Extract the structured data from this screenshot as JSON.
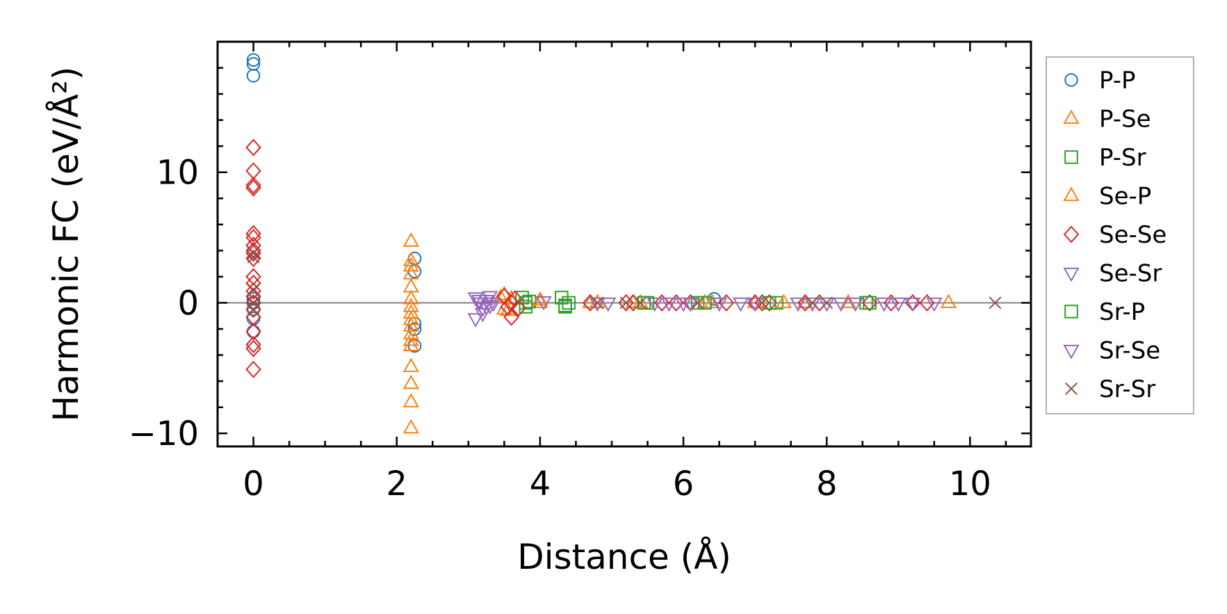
{
  "chart_data": {
    "type": "scatter",
    "title": "",
    "xlabel": "Distance (Å)",
    "ylabel": "Harmonic FC (eV/Å²)",
    "xlim": [
      -0.5,
      10.85
    ],
    "ylim": [
      -11,
      20
    ],
    "xticks": [
      0,
      2,
      4,
      6,
      8,
      10
    ],
    "xtick_labels": [
      "0",
      "2",
      "4",
      "6",
      "8",
      "10"
    ],
    "yticks": [
      -10,
      0,
      10
    ],
    "ytick_labels": [
      "−10",
      "0",
      "10"
    ],
    "zero_line": 0,
    "grid": false,
    "legend": "outside-right",
    "series": [
      {
        "name": "P-P",
        "marker": "circle",
        "color": "#1f77b4",
        "x": [
          0,
          0,
          0,
          0,
          0,
          0,
          0,
          0,
          2.25,
          2.25,
          2.25,
          2.25,
          2.25,
          6.43
        ],
        "y": [
          18.6,
          18.3,
          17.4,
          0.3,
          -0.5,
          -1.2,
          -2.2,
          0.0,
          3.4,
          2.4,
          -1.6,
          -2.0,
          -3.3,
          0.3
        ]
      },
      {
        "name": "P-Se",
        "marker": "triangle-up",
        "color": "#ff7f0e",
        "x": [
          2.2,
          2.2,
          2.2,
          2.2,
          2.2,
          2.2,
          2.2,
          2.2,
          2.2,
          2.2,
          2.2,
          2.2,
          2.2,
          2.2,
          2.2,
          2.2,
          2.2,
          3.5,
          3.55,
          3.6,
          4.0,
          4.8,
          5.3,
          6.4,
          7.0,
          7.7,
          9.7
        ],
        "y": [
          4.7,
          3.2,
          2.8,
          2.2,
          1.2,
          0.3,
          -0.3,
          -0.8,
          -1.3,
          -1.8,
          -2.4,
          -2.9,
          -3.3,
          -4.9,
          -6.2,
          -7.6,
          -9.6,
          0.6,
          -0.6,
          0.3,
          0.0,
          0.0,
          0.0,
          0.0,
          0.0,
          0.0,
          0.0
        ]
      },
      {
        "name": "P-Sr",
        "marker": "square",
        "color": "#2ca02c",
        "x": [
          3.75,
          3.8,
          3.85,
          4.3,
          4.35,
          4.4,
          5.5,
          6.2,
          7.3,
          8.6
        ],
        "y": [
          0.4,
          -0.3,
          0.1,
          0.4,
          -0.3,
          0.0,
          0.0,
          0.0,
          0.0,
          0.0
        ]
      },
      {
        "name": "Se-P",
        "marker": "triangle-up",
        "color": "#ff7f0e",
        "x": [
          3.45,
          3.5,
          4.0,
          4.7,
          5.4,
          6.3,
          7.4,
          8.3
        ],
        "y": [
          0.4,
          -0.5,
          0.2,
          0.0,
          0.0,
          0.0,
          0.0,
          0.0
        ]
      },
      {
        "name": "Se-Se",
        "marker": "diamond",
        "color": "#d62728",
        "x": [
          0,
          0,
          0,
          0,
          0,
          0,
          0,
          0,
          0,
          0,
          0,
          0,
          0,
          0,
          0,
          0,
          0,
          0,
          0,
          0,
          0,
          3.5,
          3.55,
          3.6,
          3.65,
          3.7,
          3.6,
          4.7,
          5.2,
          5.3,
          5.7,
          5.9,
          6.1,
          6.6,
          7.0,
          7.1,
          7.2,
          7.7,
          7.9,
          8.6,
          8.9,
          9.2,
          9.4
        ],
        "y": [
          11.9,
          10.1,
          9.0,
          8.8,
          5.3,
          5.0,
          4.4,
          4.0,
          3.8,
          3.4,
          2.0,
          1.5,
          0.9,
          0.5,
          0.0,
          -0.5,
          -1.1,
          -2.2,
          -3.2,
          -3.5,
          -5.1,
          0.5,
          -0.3,
          0.0,
          0.3,
          -0.4,
          -1.1,
          0.0,
          0.0,
          0.0,
          0.0,
          0.0,
          0.0,
          0.0,
          0.0,
          0.0,
          0.0,
          0.0,
          0.0,
          0.0,
          0.0,
          0.0,
          0.0
        ]
      },
      {
        "name": "Se-Sr",
        "marker": "triangle-down",
        "color": "#9467bd",
        "x": [
          3.1,
          3.15,
          3.2,
          3.25,
          3.3,
          3.1,
          3.2,
          3.3,
          4.05,
          4.95,
          5.8,
          6.1,
          6.8,
          7.6,
          8.0,
          8.2,
          8.8,
          9.2
        ],
        "y": [
          0.4,
          0.0,
          -0.4,
          0.2,
          -0.2,
          -1.2,
          -0.8,
          0.5,
          0.1,
          0.0,
          0.0,
          0.0,
          0.0,
          0.0,
          0.0,
          0.0,
          0.0,
          0.0
        ]
      },
      {
        "name": "Sr-P",
        "marker": "square",
        "color": "#2ca02c",
        "x": [
          3.8,
          4.35,
          5.45,
          6.3,
          7.2,
          8.55
        ],
        "y": [
          0.0,
          -0.2,
          0.0,
          0.0,
          0.0,
          0.0
        ]
      },
      {
        "name": "Sr-Se",
        "marker": "triangle-down",
        "color": "#9467bd",
        "x": [
          3.15,
          3.25,
          3.35,
          4.8,
          5.6,
          6.0,
          6.5,
          7.0,
          7.8,
          8.4,
          9.0,
          9.5
        ],
        "y": [
          0.2,
          -0.3,
          0.0,
          0.0,
          0.0,
          0.0,
          0.0,
          0.0,
          0.0,
          0.0,
          0.0,
          0.0
        ]
      },
      {
        "name": "Sr-Sr",
        "marker": "x",
        "color": "#8c564b",
        "x": [
          0,
          0,
          0,
          0,
          0,
          4.8,
          5.2,
          5.4,
          6.2,
          7.8,
          8.0,
          10.35
        ],
        "y": [
          3.8,
          1.0,
          0.0,
          -0.5,
          3.5,
          0.0,
          0.0,
          0.0,
          0.0,
          0.0,
          0.0,
          0.0
        ]
      }
    ]
  }
}
